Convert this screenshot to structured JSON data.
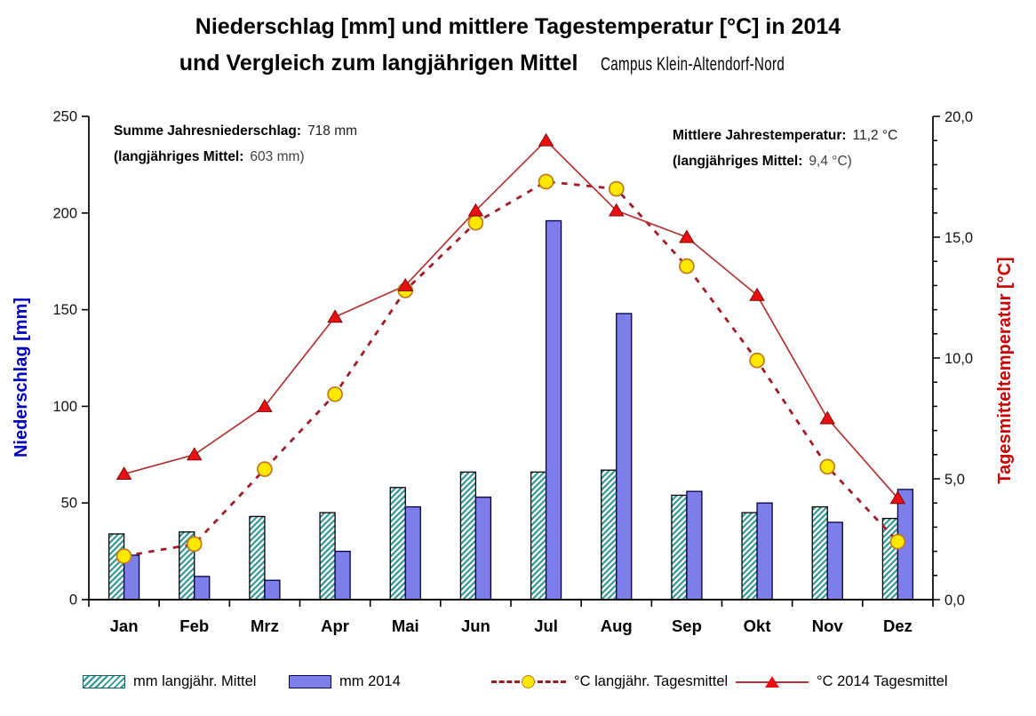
{
  "title": {
    "line1": "Niederschlag [mm] und mittlere Tagestemperatur [°C] in 2014",
    "line2": "und Vergleich zum langjährigen Mittel",
    "location": "Campus Klein-Altendorf-Nord"
  },
  "annotations": {
    "precipitation": {
      "label": "Summe Jahresniederschlag:",
      "value": "718 mm",
      "label2": "(langjähriges Mittel:",
      "value2": "603 mm)"
    },
    "temperature": {
      "label": "Mittlere Jahrestemperatur:",
      "value": "11,2 °C",
      "label2": "(langjähriges Mittel:",
      "value2": "9,4 °C)"
    }
  },
  "chart_data": {
    "type": "combo-bar-line",
    "categories": [
      "Jan",
      "Feb",
      "Mrz",
      "Apr",
      "Mai",
      "Jun",
      "Jul",
      "Aug",
      "Sep",
      "Okt",
      "Nov",
      "Dez"
    ],
    "axes": {
      "left": {
        "label": "Niederschlag [mm]",
        "min": 0,
        "max": 250,
        "major_step": 50,
        "color": "#0000be"
      },
      "right": {
        "label": "Tagesmitteltemperatur [°C]",
        "min": 0,
        "max": 20,
        "major_step": 5,
        "minor_step": 1,
        "color": "#cc0000",
        "decimal_comma": true
      }
    },
    "grid": false,
    "legend_position": "bottom",
    "series": [
      {
        "name": "mm langjähr. Mittel",
        "type": "bar",
        "axis": "left",
        "style": "hatched",
        "hatch_color": "#2e9494",
        "border_color": "#000000",
        "values": [
          34,
          35,
          43,
          45,
          58,
          66,
          66,
          67,
          54,
          45,
          48,
          42
        ]
      },
      {
        "name": "mm 2014",
        "type": "bar",
        "axis": "left",
        "style": "solid",
        "fill_color": "#7e7eeb",
        "border_color": "#000046",
        "values": [
          23,
          12,
          10,
          25,
          48,
          53,
          196,
          148,
          56,
          50,
          40,
          57
        ]
      },
      {
        "name": "°C langjähr. Tagesmittel",
        "type": "line",
        "axis": "right",
        "line_style": "dashed",
        "line_color": "#9e1c28",
        "marker": "circle",
        "marker_fill": "#ffe800",
        "marker_border": "#bf7a1f",
        "values": [
          1.8,
          2.3,
          5.4,
          8.5,
          12.8,
          15.6,
          17.3,
          17.0,
          13.8,
          9.9,
          5.5,
          2.4
        ]
      },
      {
        "name": "°C 2014 Tagesmittel",
        "type": "line",
        "axis": "right",
        "line_style": "solid",
        "line_color": "#b23333",
        "marker": "triangle",
        "marker_fill": "#e81010",
        "marker_border": "#7a0000",
        "values": [
          5.2,
          6.0,
          8.0,
          11.7,
          13.0,
          16.1,
          19.0,
          16.1,
          15.0,
          12.6,
          7.5,
          4.2
        ]
      }
    ]
  },
  "legend": {
    "items": [
      {
        "label": "mm langjähr. Mittel"
      },
      {
        "label": "mm 2014"
      },
      {
        "label": "°C langjähr. Tagesmittel"
      },
      {
        "label": "°C 2014 Tagesmittel"
      }
    ]
  }
}
